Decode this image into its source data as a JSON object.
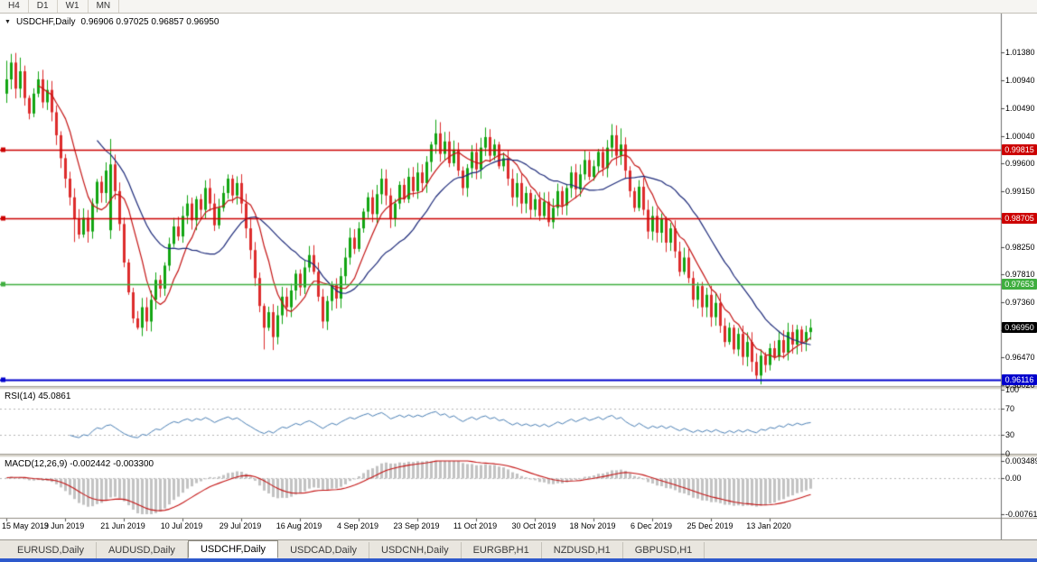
{
  "toolbar": {
    "timeframes": [
      "H4",
      "D1",
      "W1",
      "MN"
    ]
  },
  "header": {
    "symbol": "USDCHF,Daily",
    "ohlc": "0.96906 0.97025 0.96857 0.96950"
  },
  "colors": {
    "background": "#ffffff",
    "candle_up": "#12a512",
    "candle_down": "#dd2c2c",
    "ma_fast": "#c41414",
    "ma_slow": "#1d2a7a",
    "resistance_line": "#cc0000",
    "support_line": "#3fae3f",
    "low_line": "#0000cc",
    "rsi_line": "#4a7fb5",
    "macd_histogram": "#c2c2c2",
    "macd_signal": "#c41414",
    "window_edge": "#2d59cc"
  },
  "chart_data": {
    "type": "candlestick",
    "title": "USDCHF,Daily",
    "symbol": "USDCHF",
    "timeframe": "Daily",
    "ohlc_display": {
      "open": "0.96906",
      "high": "0.97025",
      "low": "0.96857",
      "close": "0.96950"
    },
    "y_axis": {
      "price_min": 0.9601,
      "price_max": 1.0201,
      "ticks": [
        "1.01380",
        "1.00940",
        "1.00490",
        "1.00040",
        "0.99600",
        "0.99150",
        "0.98700",
        "0.98250",
        "0.97810",
        "0.97360",
        "0.96910",
        "0.96470",
        "0.96020"
      ]
    },
    "x_axis": {
      "label_every": 13,
      "date_labels": [
        "15 May 2019",
        "3 Jun 2019",
        "21 Jun 2019",
        "10 Jul 2019",
        "29 Jul 2019",
        "16 Aug 2019",
        "4 Sep 2019",
        "23 Sep 2019",
        "11 Oct 2019",
        "30 Oct 2019",
        "18 Nov 2019",
        "6 Dec 2019",
        "25 Dec 2019",
        "13 Jan 2020"
      ]
    },
    "first_open": 1.0072,
    "closes": [
      1.0095,
      1.0122,
      1.008,
      1.0108,
      1.0065,
      1.004,
      1.0072,
      1.0095,
      1.0058,
      1.0078,
      1.0042,
      1.0005,
      0.9968,
      0.9935,
      0.9905,
      0.987,
      0.9845,
      0.9872,
      0.985,
      0.9895,
      0.993,
      0.9912,
      0.9948,
      0.9958,
      0.9915,
      0.9862,
      0.98,
      0.9752,
      0.971,
      0.9695,
      0.9728,
      0.9705,
      0.974,
      0.9772,
      0.9758,
      0.9795,
      0.983,
      0.9858,
      0.9842,
      0.9875,
      0.9895,
      0.9868,
      0.9902,
      0.9885,
      0.992,
      0.9895,
      0.986,
      0.9888,
      0.9912,
      0.9935,
      0.9908,
      0.9928,
      0.9895,
      0.9855,
      0.982,
      0.9775,
      0.973,
      0.9695,
      0.972,
      0.968,
      0.9715,
      0.9745,
      0.9728,
      0.9755,
      0.9782,
      0.976,
      0.9792,
      0.9812,
      0.9785,
      0.9745,
      0.9705,
      0.9738,
      0.9765,
      0.9742,
      0.9778,
      0.9808,
      0.984,
      0.9822,
      0.9855,
      0.9882,
      0.9905,
      0.9878,
      0.991,
      0.9935,
      0.9908,
      0.987,
      0.9895,
      0.9925,
      0.9902,
      0.9938,
      0.9915,
      0.9945,
      0.9928,
      0.9962,
      0.999,
      1.0008,
      0.9975,
      0.9995,
      0.996,
      0.9982,
      0.9948,
      0.992,
      0.9952,
      0.9978,
      0.995,
      0.9985,
      1.0002,
      0.9972,
      0.999,
      0.9955,
      0.9968,
      0.9935,
      0.9905,
      0.9928,
      0.9895,
      0.9912,
      0.9885,
      0.9902,
      0.9875,
      0.9898,
      0.9865,
      0.9888,
      0.9915,
      0.9892,
      0.992,
      0.9945,
      0.9918,
      0.9942,
      0.9965,
      0.9938,
      0.9955,
      0.9978,
      0.9952,
      0.9985,
      1.0005,
      0.9972,
      0.999,
      0.9948,
      0.9915,
      0.9888,
      0.9922,
      0.9885,
      0.985,
      0.9875,
      0.9848,
      0.987,
      0.9832,
      0.9855,
      0.9818,
      0.9785,
      0.9808,
      0.9775,
      0.974,
      0.9762,
      0.9728,
      0.9748,
      0.9712,
      0.9735,
      0.9698,
      0.9672,
      0.9695,
      0.966,
      0.9685,
      0.9648,
      0.9672,
      0.964,
      0.9618,
      0.965,
      0.9635,
      0.9662,
      0.9648,
      0.9675,
      0.9655,
      0.9688,
      0.9668,
      0.9692,
      0.9672,
      0.9688,
      0.9695
    ],
    "spikes": [
      {
        "index": 0,
        "high": 1.0125
      },
      {
        "index": 1,
        "high": 1.0136
      },
      {
        "index": 3,
        "high": 1.013
      },
      {
        "index": 15,
        "low": 0.9833
      },
      {
        "index": 18,
        "low": 0.9832
      },
      {
        "index": 23,
        "open": 0.9852,
        "high": 0.9999,
        "low": 0.9838
      },
      {
        "index": 29,
        "low": 0.9692
      },
      {
        "index": 57,
        "low": 0.966
      },
      {
        "index": 59,
        "low": 0.9659
      },
      {
        "index": 95,
        "high": 1.003
      },
      {
        "index": 96,
        "high": 1.0026
      },
      {
        "index": 134,
        "high": 1.0023
      },
      {
        "index": 136,
        "high": 1.0016
      },
      {
        "index": 166,
        "low": 0.9612
      }
    ],
    "moving_averages": [
      {
        "period": 8,
        "color": "#c41414"
      },
      {
        "period": 21,
        "color": "#1d2a7a"
      }
    ],
    "horizontal_lines": [
      {
        "price": 0.99815,
        "label": "0.99815",
        "color": "#cc0000",
        "width": 1.5
      },
      {
        "price": 0.98705,
        "label": "0.98705",
        "color": "#cc0000",
        "width": 1.5
      },
      {
        "price": 0.97653,
        "label": "0.97653",
        "color": "#3fae3f",
        "width": 1.5
      },
      {
        "price": 0.96116,
        "label": "0.96116",
        "color": "#0000cc",
        "width": 2
      }
    ],
    "current_price": {
      "value": 0.9695,
      "label": "0.96950",
      "badge_color": "#000000"
    },
    "candle_up_color": "#12a512",
    "candle_down_color": "#dd2c2c",
    "indicators": {
      "rsi": {
        "label": "RSI(14) 45.0861",
        "period": 14,
        "value": 45.0861,
        "levels": [
          70,
          30
        ],
        "axis_ticks": [
          "100",
          "70",
          "30",
          "0"
        ],
        "line_color": "#4a7fb5"
      },
      "macd": {
        "label": "MACD(12,26,9) -0.002442 -0.003300",
        "fast": 12,
        "slow": 26,
        "signal": 9,
        "value_main": -0.002442,
        "value_signal": -0.0033,
        "axis_ticks": [
          "0.003489",
          "0.00",
          "-0.007615"
        ],
        "axis_max": 0.003489,
        "axis_min": -0.007615,
        "hist_color": "#c2c2c2",
        "signal_color": "#c41414"
      }
    }
  },
  "tabs": {
    "active_index": 2,
    "items": [
      "EURUSD,Daily",
      "AUDUSD,Daily",
      "USDCHF,Daily",
      "USDCAD,Daily",
      "USDCNH,Daily",
      "EURGBP,H1",
      "NZDUSD,H1",
      "GBPUSD,H1"
    ]
  }
}
